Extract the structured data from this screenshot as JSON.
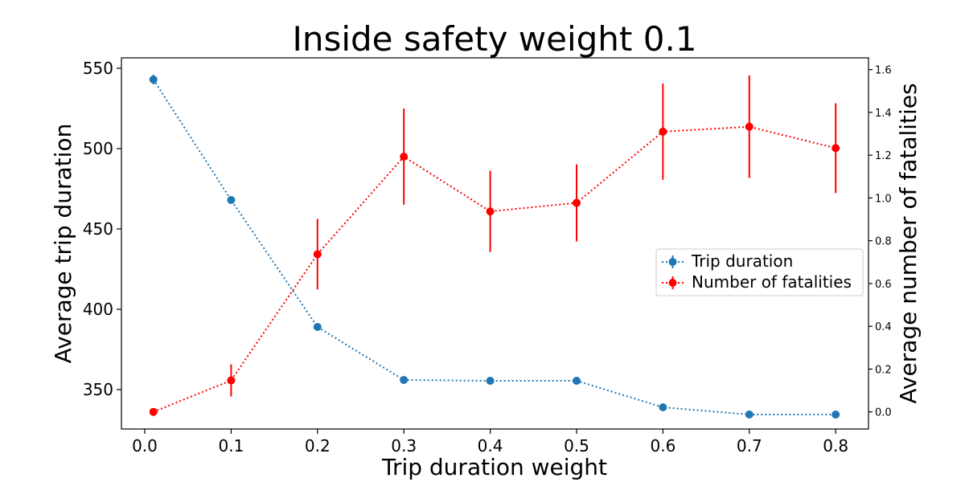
{
  "chart_data": {
    "type": "line",
    "title": "Inside safety weight 0.1",
    "xlabel": "Trip duration weight",
    "ylabel_left": "Average trip duration",
    "ylabel_right": "Average number of fatalities",
    "x": [
      0.01,
      0.1,
      0.2,
      0.3,
      0.4,
      0.5,
      0.6,
      0.7,
      0.8
    ],
    "x_ticks": [
      "0.0",
      "0.1",
      "0.2",
      "0.3",
      "0.4",
      "0.5",
      "0.6",
      "0.7",
      "0.8"
    ],
    "x_tick_values": [
      0.0,
      0.1,
      0.2,
      0.3,
      0.4,
      0.5,
      0.6,
      0.7,
      0.8
    ],
    "xlim": [
      -0.027,
      0.838
    ],
    "y_left_ticks": [
      "350",
      "400",
      "450",
      "500",
      "550"
    ],
    "y_left_tick_values": [
      350,
      400,
      450,
      500,
      550
    ],
    "ylim_left": [
      325.5,
      556.5
    ],
    "y_right_ticks": [
      "0.0",
      "0.2",
      "0.4",
      "0.6",
      "0.8",
      "1.0",
      "1.2",
      "1.4",
      "1.6"
    ],
    "y_right_tick_values": [
      0.0,
      0.2,
      0.4,
      0.6,
      0.8,
      1.0,
      1.2,
      1.4,
      1.6
    ],
    "ylim_right": [
      -0.08,
      1.655
    ],
    "series": [
      {
        "name": "Trip duration",
        "axis": "left",
        "color": "#1f77b4",
        "values": [
          543,
          468,
          389,
          356,
          355.5,
          355.5,
          339,
          334.5,
          334.5
        ],
        "errors": [
          3,
          1,
          1,
          0.8,
          0.8,
          0.8,
          0.5,
          0.4,
          0.4
        ]
      },
      {
        "name": "Number of fatalities",
        "axis": "right",
        "color": "#ff0000",
        "values": [
          0.0,
          0.147,
          0.737,
          1.193,
          0.937,
          0.977,
          1.31,
          1.333,
          1.233
        ],
        "errors": [
          0.0,
          0.075,
          0.165,
          0.225,
          0.19,
          0.18,
          0.225,
          0.24,
          0.21
        ]
      }
    ],
    "legend": {
      "position": "center-right",
      "entries": [
        "Trip duration",
        "Number of fatalities"
      ]
    },
    "grid": false
  }
}
